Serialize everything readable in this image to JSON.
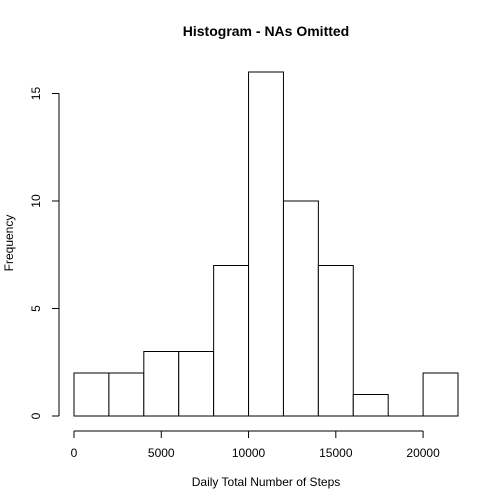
{
  "chart_data": {
    "type": "bar",
    "title": "Histogram - NAs Omitted",
    "xlabel": "Daily Total Number of Steps",
    "ylabel": "Frequency",
    "bins": [
      {
        "start": 0,
        "end": 2000,
        "count": 2
      },
      {
        "start": 2000,
        "end": 4000,
        "count": 2
      },
      {
        "start": 4000,
        "end": 6000,
        "count": 3
      },
      {
        "start": 6000,
        "end": 8000,
        "count": 3
      },
      {
        "start": 8000,
        "end": 10000,
        "count": 7
      },
      {
        "start": 10000,
        "end": 12000,
        "count": 16
      },
      {
        "start": 12000,
        "end": 14000,
        "count": 10
      },
      {
        "start": 14000,
        "end": 16000,
        "count": 7
      },
      {
        "start": 16000,
        "end": 18000,
        "count": 1
      },
      {
        "start": 18000,
        "end": 20000,
        "count": 0
      },
      {
        "start": 20000,
        "end": 22000,
        "count": 2
      }
    ],
    "xticks": [
      0,
      5000,
      10000,
      15000,
      20000
    ],
    "yticks": [
      0,
      5,
      10,
      15
    ],
    "xlim": [
      0,
      22000
    ],
    "ylim": [
      0,
      16
    ],
    "bar_fill": "#ffffff",
    "bar_stroke": "#000000"
  }
}
